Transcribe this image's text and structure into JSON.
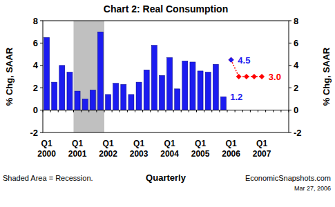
{
  "chart_data": {
    "type": "bar",
    "title": "Chart 2: Real Consumption",
    "y_label": "% Chg, SAAR",
    "y2_label": "% Chg, SAAR",
    "x_label": "Quarterly",
    "footnote": "Shaded Area = Recession.",
    "source": "EconomicSnapshots.com",
    "date": "Mar 27, 2006",
    "categories": [
      "Q1 2000",
      null,
      null,
      null,
      "Q1 2001",
      null,
      null,
      null,
      "Q1 2002",
      null,
      null,
      null,
      "Q1 2003",
      null,
      null,
      null,
      "Q1 2004",
      null,
      null,
      null,
      "Q1 2005",
      null,
      null,
      null,
      "Q1 2006",
      null,
      null,
      null,
      "Q1 2007",
      null,
      null,
      null
    ],
    "series": [
      {
        "type": "bar",
        "color": "#1c1cf0",
        "values": [
          6.5,
          2.5,
          4.0,
          3.4,
          1.7,
          1.0,
          1.8,
          7.0,
          1.4,
          2.4,
          2.3,
          1.4,
          2.5,
          3.6,
          5.8,
          3.1,
          4.7,
          1.9,
          4.4,
          4.3,
          3.5,
          3.4,
          4.1,
          1.2,
          null,
          null,
          null,
          null,
          null,
          null,
          null,
          null
        ]
      },
      {
        "type": "line",
        "color": "#ff0000",
        "marker": "diamond",
        "line_style": "dotted",
        "values": [
          null,
          null,
          null,
          null,
          null,
          null,
          null,
          null,
          null,
          null,
          null,
          null,
          null,
          null,
          null,
          null,
          null,
          null,
          null,
          null,
          null,
          null,
          null,
          null,
          4.5,
          3.0,
          3.0,
          3.0,
          3.0,
          null,
          null,
          null
        ]
      },
      {
        "type": "scatter",
        "color": "#1c1cf0",
        "marker": "diamond",
        "values": [
          null,
          null,
          null,
          null,
          null,
          null,
          null,
          null,
          null,
          null,
          null,
          null,
          null,
          null,
          null,
          null,
          null,
          null,
          null,
          null,
          null,
          null,
          null,
          null,
          4.5,
          null,
          null,
          null,
          null,
          null,
          null,
          null
        ]
      }
    ],
    "annotations": [
      {
        "text": "1.2",
        "x": 23,
        "y": 1.2,
        "color": "#1c1cf0"
      },
      {
        "text": "4.5",
        "x": 24,
        "y": 4.5,
        "color": "#1c1cf0"
      },
      {
        "text": "3.0",
        "x": 28,
        "y": 3.0,
        "color": "#ff0000"
      }
    ],
    "shade": {
      "start": 4,
      "end": 7,
      "color": "#c0c0c0"
    },
    "ylim": [
      -2,
      8
    ],
    "yticks": [
      -2,
      0,
      2,
      4,
      6,
      8
    ],
    "y2lim": [
      -2,
      8
    ],
    "y2ticks": [
      -2,
      0,
      2,
      4,
      6,
      8
    ],
    "grid": false
  }
}
